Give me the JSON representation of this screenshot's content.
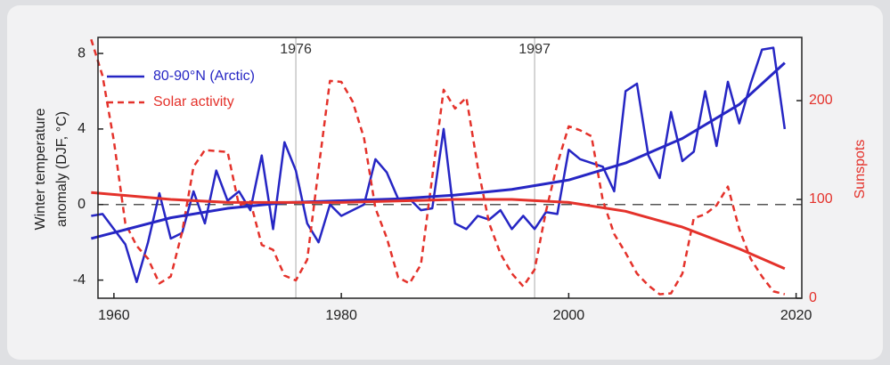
{
  "chart_data": {
    "type": "line",
    "ylabel": [
      "Winter temperature",
      "anomaly (DJF, °C)"
    ],
    "y2label": "Sunspots",
    "xlim": [
      1958.6,
      2020.5
    ],
    "xticks": [
      1960,
      1980,
      2000,
      2020
    ],
    "ylim": [
      -4.96,
      8.85
    ],
    "yticks": [
      -4,
      0,
      4,
      8
    ],
    "y2lim": [
      0,
      264
    ],
    "y2ticks": [
      0,
      100,
      200
    ],
    "vlines": [
      1976,
      1997
    ],
    "hlines": [
      0
    ],
    "legend": "upper left",
    "x": [
      1958,
      1959,
      1960,
      1961,
      1962,
      1963,
      1964,
      1965,
      1966,
      1967,
      1968,
      1969,
      1970,
      1971,
      1972,
      1973,
      1974,
      1975,
      1976,
      1977,
      1978,
      1979,
      1980,
      1981,
      1982,
      1983,
      1984,
      1985,
      1986,
      1987,
      1988,
      1989,
      1990,
      1991,
      1992,
      1993,
      1994,
      1995,
      1996,
      1997,
      1998,
      1999,
      2000,
      2001,
      2002,
      2003,
      2004,
      2005,
      2006,
      2007,
      2008,
      2009,
      2010,
      2011,
      2012,
      2013,
      2014,
      2015,
      2016,
      2017,
      2018,
      2019
    ],
    "series": [
      {
        "name": "80-90°N (Arctic)",
        "color": "#2626c4",
        "dash": false,
        "width": 2.5,
        "values": [
          -0.6,
          -0.5,
          -1.3,
          -2.1,
          -4.1,
          -2.0,
          0.6,
          -1.8,
          -1.5,
          0.7,
          -1.0,
          1.8,
          0.2,
          0.7,
          -0.3,
          2.6,
          -1.3,
          3.3,
          1.8,
          -1.0,
          -2.0,
          0.0,
          -0.6,
          -0.3,
          0.0,
          2.4,
          1.7,
          0.3,
          0.3,
          -0.3,
          -0.2,
          4.0,
          -1.0,
          -1.3,
          -0.6,
          -0.8,
          -0.3,
          -1.3,
          -0.6,
          -1.3,
          -0.4,
          -0.5,
          2.9,
          2.4,
          2.2,
          2.0,
          0.7,
          6.0,
          6.4,
          2.6,
          1.4,
          4.9,
          2.3,
          2.8,
          6.0,
          3.1,
          6.5,
          4.3,
          6.4,
          8.2,
          8.3,
          4.0
        ]
      },
      {
        "name": "Solar activity",
        "color": "#e4322b",
        "dash": true,
        "width": 2.5,
        "axis": "y2",
        "values": [
          262,
          225,
          159,
          76,
          53,
          40,
          15,
          22,
          67,
          133,
          150,
          149,
          148,
          94,
          98,
          54,
          49,
          23,
          18,
          39,
          131,
          220,
          219,
          199,
          162,
          91,
          61,
          21,
          15,
          34,
          123,
          211,
          192,
          203,
          133,
          76,
          45,
          25,
          12,
          29,
          88,
          136,
          174,
          170,
          164,
          99,
          65,
          46,
          25,
          13,
          4,
          5,
          25,
          81,
          85,
          94,
          113,
          70,
          40,
          22,
          7,
          4
        ]
      },
      {
        "color": "#2626c4",
        "dash": false,
        "width": 3,
        "x": [
          1958,
          1965,
          1970,
          1975,
          1980,
          1985,
          1990,
          1995,
          2000,
          2005,
          2010,
          2015,
          2019
        ],
        "values": [
          -1.8,
          -0.7,
          -0.2,
          0.1,
          0.2,
          0.3,
          0.5,
          0.8,
          1.3,
          2.2,
          3.5,
          5.3,
          7.5
        ]
      },
      {
        "color": "#e4322b",
        "dash": false,
        "width": 3,
        "axis": "y2",
        "x": [
          1958,
          1965,
          1970,
          1980,
          1990,
          1995,
          2000,
          2005,
          2010,
          2015,
          2019
        ],
        "values": [
          107,
          100,
          97,
          97,
          100,
          100,
          97,
          88,
          72,
          50,
          30
        ]
      }
    ]
  }
}
